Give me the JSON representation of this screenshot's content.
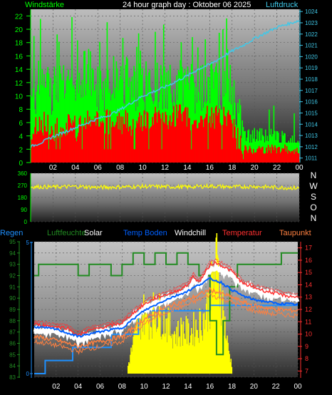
{
  "header": {
    "left": "Windstärke",
    "center": "24 hour graph day : Oktober 06 2025",
    "right": "Luftdruck"
  },
  "colors": {
    "wind_gust": "#00ff00",
    "wind_avg": "#ff0000",
    "pressure": "#40c8e8",
    "direction": "#ffff00",
    "humidity": "#228b22",
    "solar": "#ffff00",
    "soil_temp": "#0060ff",
    "windchill": "#ffffff",
    "temperature": "#ff3030",
    "dewpoint": "#ff8040",
    "rain": "#1e90ff"
  },
  "x_ticks": [
    "02",
    "04",
    "06",
    "08",
    "10",
    "12",
    "14",
    "16",
    "18",
    "20",
    "22",
    "00"
  ],
  "wind_panel": {
    "left_ticks": [
      "0",
      "2",
      "4",
      "6",
      "8",
      "10",
      "12",
      "14",
      "16",
      "18",
      "20",
      "22"
    ],
    "right_ticks": [
      "1011",
      "1012",
      "1013",
      "1014",
      "1015",
      "1016",
      "1017",
      "1018",
      "1019",
      "1020",
      "1021",
      "1022",
      "1023",
      "1024"
    ]
  },
  "dir_panel": {
    "left_ticks": [
      "0",
      "90",
      "180",
      "270",
      "360"
    ],
    "compass": [
      "N",
      "W",
      "S",
      "O",
      "N"
    ]
  },
  "legend": [
    "Regen",
    "Luftfeuchte",
    "Solar",
    "Temp Boden",
    "Windchill",
    "Temperatur",
    "Taupunkt"
  ],
  "temp_panel": {
    "hum_ticks": [
      "83",
      "84",
      "85",
      "86",
      "87",
      "88",
      "89",
      "90",
      "91",
      "92",
      "93",
      "94",
      "95"
    ],
    "rain_ticks": [
      "0",
      "5"
    ],
    "temp_ticks": [
      "7",
      "8",
      "9",
      "10",
      "11",
      "12",
      "13",
      "14",
      "15",
      "16",
      "17"
    ]
  },
  "chart_data": [
    {
      "type": "bar",
      "name": "wind-pressure",
      "x_range_hours": [
        0,
        24
      ],
      "left_axis": {
        "label": "Windstärke",
        "ylim": [
          0,
          23
        ]
      },
      "right_axis": {
        "label": "Luftdruck",
        "ylim": [
          1010.6,
          1024.2
        ]
      },
      "series": [
        {
          "name": "gust",
          "x": [
            0,
            1,
            2,
            3,
            4,
            5,
            6,
            7,
            8,
            9,
            10,
            11,
            12,
            13,
            14,
            15,
            16,
            17,
            18,
            19,
            20,
            21,
            22,
            23,
            24
          ],
          "values": [
            10,
            12,
            11,
            13,
            12,
            14,
            11,
            12,
            13,
            12,
            11,
            12,
            11,
            12,
            11,
            11,
            12,
            11,
            11,
            4,
            4,
            4,
            4,
            3,
            3
          ]
        },
        {
          "name": "average",
          "x": [
            0,
            1,
            2,
            3,
            4,
            5,
            6,
            7,
            8,
            9,
            10,
            11,
            12,
            13,
            14,
            15,
            16,
            17,
            18,
            19,
            20,
            21,
            22,
            23,
            24
          ],
          "values": [
            5,
            6,
            5,
            6,
            5,
            6,
            6,
            6,
            6,
            6,
            6,
            7,
            7,
            7,
            7,
            6,
            7,
            7,
            6,
            2,
            2,
            2,
            2,
            2,
            2
          ]
        },
        {
          "name": "pressure",
          "x": [
            0,
            1,
            2,
            3,
            4,
            5,
            6,
            7,
            8,
            9,
            10,
            11,
            12,
            13,
            14,
            15,
            16,
            17,
            18,
            19,
            20,
            21,
            22,
            23,
            24
          ],
          "values": [
            1012.0,
            1012.4,
            1012.9,
            1013.3,
            1013.7,
            1014.1,
            1014.5,
            1014.8,
            1015.3,
            1015.9,
            1016.5,
            1016.9,
            1017.3,
            1017.8,
            1018.3,
            1018.9,
            1019.3,
            1019.9,
            1020.5,
            1021.0,
            1021.6,
            1022.1,
            1022.6,
            1022.9,
            1023.2
          ]
        }
      ]
    },
    {
      "type": "line",
      "name": "wind-direction",
      "ylim": [
        0,
        360
      ],
      "series": [
        {
          "name": "direction",
          "x": [
            0,
            2,
            4,
            6,
            8,
            10,
            12,
            14,
            16,
            18,
            20,
            22,
            24
          ],
          "values": [
            260,
            258,
            262,
            255,
            258,
            262,
            260,
            258,
            265,
            258,
            262,
            255,
            250
          ]
        }
      ]
    },
    {
      "type": "line",
      "name": "temperature-humidity",
      "hum_ylim": [
        83,
        95
      ],
      "rain_ylim": [
        0,
        5
      ],
      "temp_ylim": [
        6.5,
        17.5
      ],
      "series": [
        {
          "name": "Luftfeuchte",
          "x": [
            0,
            0.4,
            0.4,
            4,
            4,
            5,
            5,
            7,
            7,
            8,
            8,
            9,
            9,
            10,
            10,
            11,
            11,
            12,
            12,
            13,
            13,
            14,
            14,
            15,
            15,
            15.5,
            15.5,
            16,
            16,
            16.6,
            16.6,
            17.2,
            17.2,
            17.8,
            17.8,
            18.5,
            18.5,
            20,
            20,
            22.5,
            22.5,
            24
          ],
          "values": [
            92,
            92,
            93,
            93,
            92,
            92,
            93,
            93,
            92,
            92,
            93,
            93,
            94,
            94,
            93,
            93,
            94,
            94,
            93,
            93,
            94,
            94,
            93,
            93,
            92,
            92,
            92,
            92,
            88,
            88,
            85,
            85,
            88,
            88,
            91,
            91,
            93,
            93,
            93,
            93,
            94,
            94
          ]
        },
        {
          "name": "Temperatur",
          "x": [
            0,
            2,
            3,
            4,
            5,
            6,
            7,
            8,
            9,
            10,
            11,
            12,
            13,
            14,
            14.5,
            15,
            15.5,
            16,
            16.5,
            17,
            18,
            19,
            20,
            21,
            22,
            23,
            24
          ],
          "values": [
            10.8,
            10.6,
            10.5,
            9.9,
            10.3,
            10.5,
            10.7,
            10.9,
            11.7,
            12.4,
            12.9,
            13.2,
            13.5,
            14.0,
            14.7,
            14.2,
            14.9,
            15.6,
            15.8,
            15.6,
            15.1,
            14.1,
            13.8,
            13.5,
            13.3,
            13.1,
            13.0
          ]
        },
        {
          "name": "Windchill",
          "x": [
            0,
            2,
            3,
            4,
            5,
            6,
            7,
            8,
            9,
            10,
            11,
            12,
            13,
            14,
            14.5,
            15,
            15.5,
            16,
            16.5,
            17,
            18,
            19,
            20,
            21,
            22,
            23,
            24
          ],
          "values": [
            10.4,
            10.2,
            10.1,
            9.5,
            9.9,
            10.1,
            10.3,
            10.5,
            11.3,
            12.0,
            12.5,
            12.8,
            13.1,
            13.6,
            14.3,
            13.8,
            14.5,
            15.2,
            15.4,
            15.2,
            14.8,
            13.9,
            13.6,
            13.3,
            13.1,
            12.9,
            12.8
          ]
        },
        {
          "name": "Temp Boden",
          "x": [
            0,
            2,
            4,
            6,
            8,
            10,
            12,
            14,
            15,
            16,
            17,
            18,
            19,
            20,
            22,
            24
          ],
          "values": [
            10.6,
            10.4,
            9.8,
            10.2,
            10.5,
            11.9,
            12.8,
            13.5,
            14.0,
            14.5,
            14.2,
            13.6,
            13.1,
            12.8,
            12.5,
            12.4
          ]
        },
        {
          "name": "Taupunkt",
          "x": [
            0,
            2,
            4,
            6,
            8,
            10,
            12,
            14,
            15,
            16,
            17,
            18,
            19,
            20,
            22,
            24
          ],
          "values": [
            9.8,
            9.5,
            9.0,
            9.4,
            9.8,
            11.2,
            12.2,
            12.8,
            13.2,
            13.6,
            13.3,
            13.0,
            12.6,
            12.3,
            12.0,
            11.9
          ]
        },
        {
          "name": "Regen",
          "x": [
            0,
            1,
            1,
            3.5,
            3.5,
            7,
            7,
            9.5,
            9.5,
            16,
            16,
            24
          ],
          "values": [
            0,
            0,
            0.5,
            0.5,
            1.0,
            1.0,
            1.5,
            1.5,
            2.4,
            2.4,
            2.6,
            2.6
          ]
        },
        {
          "name": "Solar",
          "x": [
            8.5,
            9,
            9.5,
            10,
            10.5,
            11,
            11.5,
            12,
            12.5,
            13,
            13.5,
            14,
            14.5,
            15,
            15.5,
            16,
            16.5,
            17,
            17.5,
            18
          ],
          "values": [
            0.3,
            1.2,
            2.0,
            2.3,
            2.1,
            2.4,
            2.2,
            1.9,
            1.6,
            1.5,
            1.7,
            1.5,
            1.7,
            1.9,
            2.2,
            2.8,
            4.2,
            3.0,
            1.2,
            0.2
          ]
        }
      ]
    }
  ]
}
